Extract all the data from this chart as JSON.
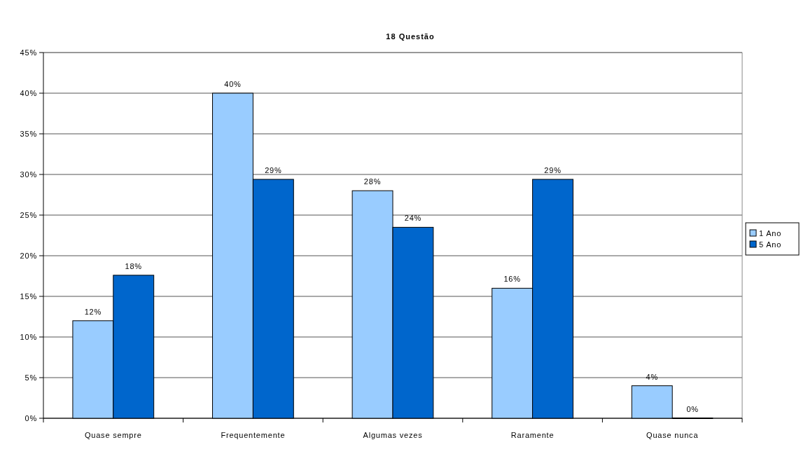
{
  "chart_data": {
    "type": "bar",
    "title": "18 Questão",
    "categories": [
      "Quase sempre",
      "Frequentemente",
      "Algumas vezes",
      "Raramente",
      "Quase nunca"
    ],
    "series": [
      {
        "name": "1 Ano",
        "color": "#99ccff",
        "values": [
          12,
          40,
          28,
          16,
          4
        ],
        "value_labels": [
          "12%",
          "40%",
          "28%",
          "16%",
          "4%"
        ]
      },
      {
        "name": "5 Ano",
        "color": "#0066cc",
        "values": [
          17.6,
          29.4,
          23.5,
          29.4,
          0
        ],
        "value_labels": [
          "18%",
          "29%",
          "24%",
          "29%",
          "0%"
        ]
      }
    ],
    "ylim": [
      0,
      45
    ],
    "yticks": [
      {
        "value": 0,
        "label": "0%"
      },
      {
        "value": 5,
        "label": "5%"
      },
      {
        "value": 10,
        "label": "10%"
      },
      {
        "value": 15,
        "label": "15%"
      },
      {
        "value": 20,
        "label": "20%"
      },
      {
        "value": 25,
        "label": "25%"
      },
      {
        "value": 30,
        "label": "30%"
      },
      {
        "value": 35,
        "label": "35%"
      },
      {
        "value": 40,
        "label": "40%"
      },
      {
        "value": 45,
        "label": "45%"
      }
    ],
    "grid": "y",
    "legend": "right"
  }
}
